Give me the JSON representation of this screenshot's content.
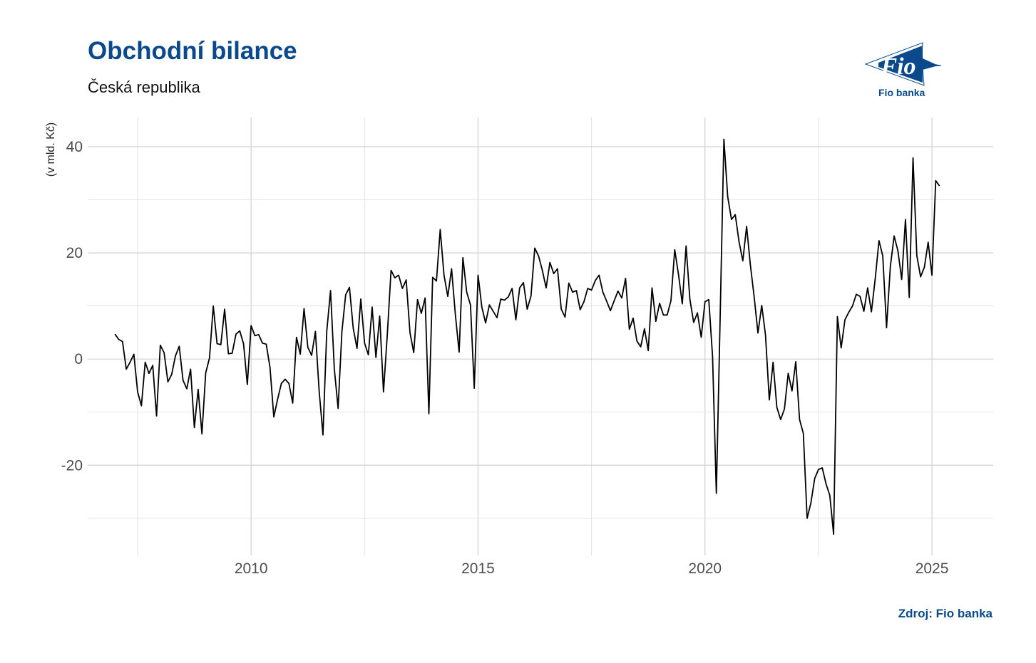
{
  "header": {
    "title": "Obchodní bilance",
    "subtitle": "Česká republika"
  },
  "logo": {
    "name": "Fio banka",
    "mark_text": "Fio",
    "color": "#0a4a8c"
  },
  "source": "Zdroj: Fio banka",
  "chart_data": {
    "type": "line",
    "title": "Obchodní bilance",
    "subtitle": "Česká republika",
    "xlabel": "",
    "ylabel": "(v mld. Kč)",
    "xlim": [
      2006.4,
      2026.35
    ],
    "ylim": [
      -37,
      45.5
    ],
    "x_ticks": [
      2010,
      2015,
      2020,
      2025
    ],
    "x_tick_labels": [
      "2010",
      "2015",
      "2020",
      "2025"
    ],
    "y_ticks": [
      -20,
      0,
      20,
      40
    ],
    "y_tick_labels": [
      "-20",
      "0",
      "20",
      "40"
    ],
    "grid": true,
    "legend": "none",
    "line_color": "#000000",
    "series": [
      {
        "start": "2007-01",
        "frequency": "monthly",
        "values": [
          4.7,
          3.7,
          3.3,
          -1.9,
          -0.6,
          0.9,
          -6.2,
          -8.8,
          -0.6,
          -2.7,
          -1.2,
          -10.7,
          2.6,
          1.2,
          -4.3,
          -2.9,
          0.6,
          2.4,
          -4.0,
          -5.6,
          -1.9,
          -12.9,
          -5.7,
          -14.1,
          -2.6,
          0.2,
          10.0,
          2.9,
          2.7,
          9.4,
          1.0,
          1.1,
          4.7,
          5.3,
          2.9,
          -4.8,
          6.3,
          4.4,
          4.6,
          3.0,
          2.8,
          -1.6,
          -10.9,
          -7.6,
          -4.6,
          -3.8,
          -4.6,
          -8.3,
          4.1,
          0.9,
          9.5,
          2.2,
          0.7,
          5.2,
          -6.1,
          -14.3,
          5.2,
          12.9,
          -1.8,
          -9.3,
          5.1,
          12.1,
          13.5,
          5.8,
          2.0,
          11.3,
          3.0,
          0.8,
          9.8,
          0.3,
          8.1,
          -6.2,
          4.5,
          16.7,
          15.3,
          15.8,
          13.3,
          14.9,
          5.0,
          1.2,
          11.2,
          8.6,
          11.5,
          -10.3,
          15.4,
          14.7,
          24.4,
          15.8,
          11.8,
          17.0,
          8.4,
          1.3,
          19.1,
          12.6,
          10.2,
          -5.5,
          15.8,
          9.8,
          6.8,
          10.2,
          9.0,
          7.8,
          11.3,
          11.1,
          11.7,
          13.3,
          7.4,
          13.4,
          14.4,
          9.4,
          11.9,
          20.9,
          19.4,
          16.7,
          13.4,
          18.2,
          16.1,
          17.0,
          9.4,
          7.9,
          14.3,
          12.6,
          12.9,
          9.3,
          10.8,
          13.3,
          13.0,
          14.8,
          15.8,
          12.6,
          10.9,
          9.1,
          11.0,
          12.8,
          11.5,
          15.2,
          5.6,
          7.7,
          3.4,
          2.3,
          5.7,
          1.6,
          13.4,
          7.1,
          10.5,
          8.3,
          8.3,
          11.0,
          20.6,
          15.9,
          10.4,
          21.3,
          11.3,
          6.9,
          8.7,
          4.1,
          10.8,
          11.2,
          0.5,
          -25.3,
          7.6,
          41.4,
          30.6,
          26.3,
          27.2,
          22.1,
          18.5,
          25.0,
          17.7,
          11.7,
          4.9,
          10.1,
          4.5,
          -7.7,
          -0.6,
          -9.1,
          -11.4,
          -9.4,
          -2.7,
          -6.0,
          -0.5,
          -11.4,
          -14.0,
          -30.0,
          -27.1,
          -22.5,
          -20.8,
          -20.5,
          -23.5,
          -25.7,
          -33.0,
          8.0,
          2.1,
          7.4,
          8.8,
          10.0,
          12.2,
          11.8,
          9.0,
          13.4,
          8.9,
          15.1,
          22.3,
          19.4,
          5.9,
          17.4,
          23.2,
          20.4,
          15.0,
          26.3,
          11.6,
          37.9,
          19.5,
          15.5,
          17.3,
          22.0,
          15.8,
          33.6,
          32.6
        ]
      }
    ]
  }
}
